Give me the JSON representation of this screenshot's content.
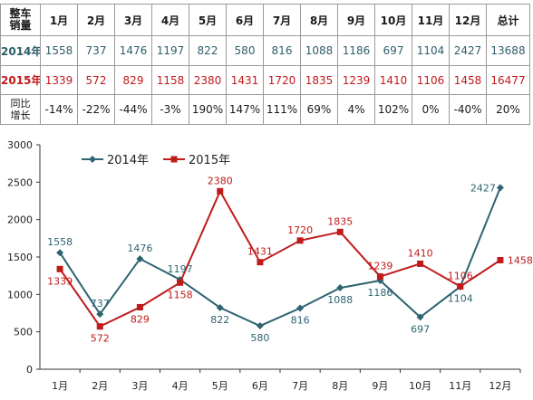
{
  "table": {
    "corner": [
      "整车",
      "销量"
    ],
    "months": [
      "1月",
      "2月",
      "3月",
      "4月",
      "5月",
      "6月",
      "7月",
      "8月",
      "9月",
      "10月",
      "11月",
      "12月"
    ],
    "total_label": "总计",
    "row2014": {
      "label": "2014年",
      "values": [
        "1558",
        "737",
        "1476",
        "1197",
        "822",
        "580",
        "816",
        "1088",
        "1186",
        "697",
        "1104",
        "2427"
      ],
      "total": "13688"
    },
    "row2015": {
      "label": "2015年",
      "values": [
        "1339",
        "572",
        "829",
        "1158",
        "2380",
        "1431",
        "1720",
        "1835",
        "1239",
        "1410",
        "1106",
        "1458"
      ],
      "total": "16477"
    },
    "growth": {
      "label": [
        "同比",
        "增长"
      ],
      "values": [
        "-14%",
        "-22%",
        "-44%",
        "-3%",
        "190%",
        "147%",
        "111%",
        "69%",
        "4%",
        "102%",
        "0%",
        "-40%"
      ],
      "total": "20%"
    }
  },
  "chart_data": {
    "type": "line",
    "categories": [
      "1月",
      "2月",
      "3月",
      "4月",
      "5月",
      "6月",
      "7月",
      "8月",
      "9月",
      "10月",
      "11月",
      "12月"
    ],
    "series": [
      {
        "name": "2014年",
        "values": [
          1558,
          737,
          1476,
          1197,
          822,
          580,
          816,
          1088,
          1186,
          697,
          1104,
          2427
        ],
        "color": "#2e6470",
        "marker": "diamond"
      },
      {
        "name": "2015年",
        "values": [
          1339,
          572,
          829,
          1158,
          2380,
          1431,
          1720,
          1835,
          1239,
          1410,
          1106,
          1458
        ],
        "color": "#c01b1b",
        "marker": "square"
      }
    ],
    "yticks": [
      0,
      500,
      1000,
      1500,
      2000,
      2500,
      3000
    ],
    "ylim": [
      0,
      3000
    ],
    "grid": false,
    "legend": "top-left",
    "data_labels": true
  }
}
